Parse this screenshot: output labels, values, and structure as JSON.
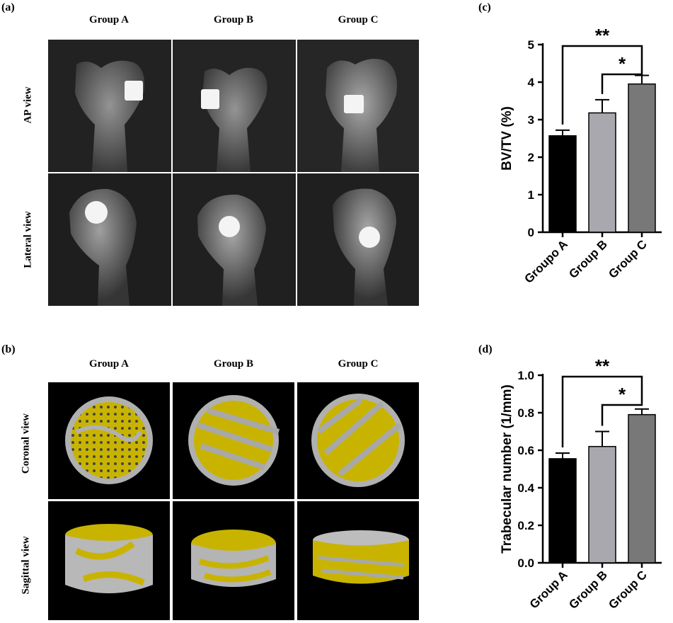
{
  "panels": {
    "a": {
      "letter": "(a)",
      "columns": [
        "Group A",
        "Group B",
        "Group C"
      ],
      "rows": [
        "AP view",
        "Lateral view"
      ]
    },
    "b": {
      "letter": "(b)",
      "columns": [
        "Group A",
        "Group B",
        "Group C"
      ],
      "rows": [
        "Coronal view",
        "Sagittal view"
      ]
    },
    "c": {
      "letter": "(c)"
    },
    "d": {
      "letter": "(d)"
    }
  },
  "colors": {
    "xray_bg": "#1b1b1b",
    "bone": "#d8d8d8",
    "implant": "#f4f4f4",
    "microct_bg": "#000000",
    "trabecular_yellow": "#c8b400",
    "trabecular_gray": "#b0b0b0",
    "bar_a": "#000000",
    "bar_b": "#a8a8ae",
    "bar_c": "#787878"
  },
  "chart_data": [
    {
      "panel": "(c)",
      "type": "bar",
      "categories": [
        "Groupo A",
        "Group B",
        "Group C"
      ],
      "values": [
        2.57,
        3.18,
        3.95
      ],
      "errors": [
        0.15,
        0.35,
        0.23
      ],
      "ylabel": "BV/TV (%)",
      "ylim": [
        0,
        5
      ],
      "yticks": [
        "0",
        "1",
        "2",
        "3",
        "4",
        "5"
      ],
      "bar_colors": [
        "#000000",
        "#a8a8ae",
        "#787878"
      ],
      "significance": [
        {
          "from": 0,
          "to": 2,
          "label": "**"
        },
        {
          "from": 1,
          "to": 2,
          "label": "*"
        }
      ]
    },
    {
      "panel": "(d)",
      "type": "bar",
      "categories": [
        "Group A",
        "Group B",
        "Group C"
      ],
      "values": [
        0.555,
        0.62,
        0.79
      ],
      "errors": [
        0.03,
        0.08,
        0.03
      ],
      "ylabel": "Trabecular number (1/mm)",
      "ylim": [
        0,
        1.0
      ],
      "yticks": [
        "0.0",
        "0.2",
        "0.4",
        "0.6",
        "0.8",
        "1.0"
      ],
      "bar_colors": [
        "#000000",
        "#a8a8ae",
        "#787878"
      ],
      "significance": [
        {
          "from": 0,
          "to": 2,
          "label": "**"
        },
        {
          "from": 1,
          "to": 2,
          "label": "*"
        }
      ]
    }
  ]
}
